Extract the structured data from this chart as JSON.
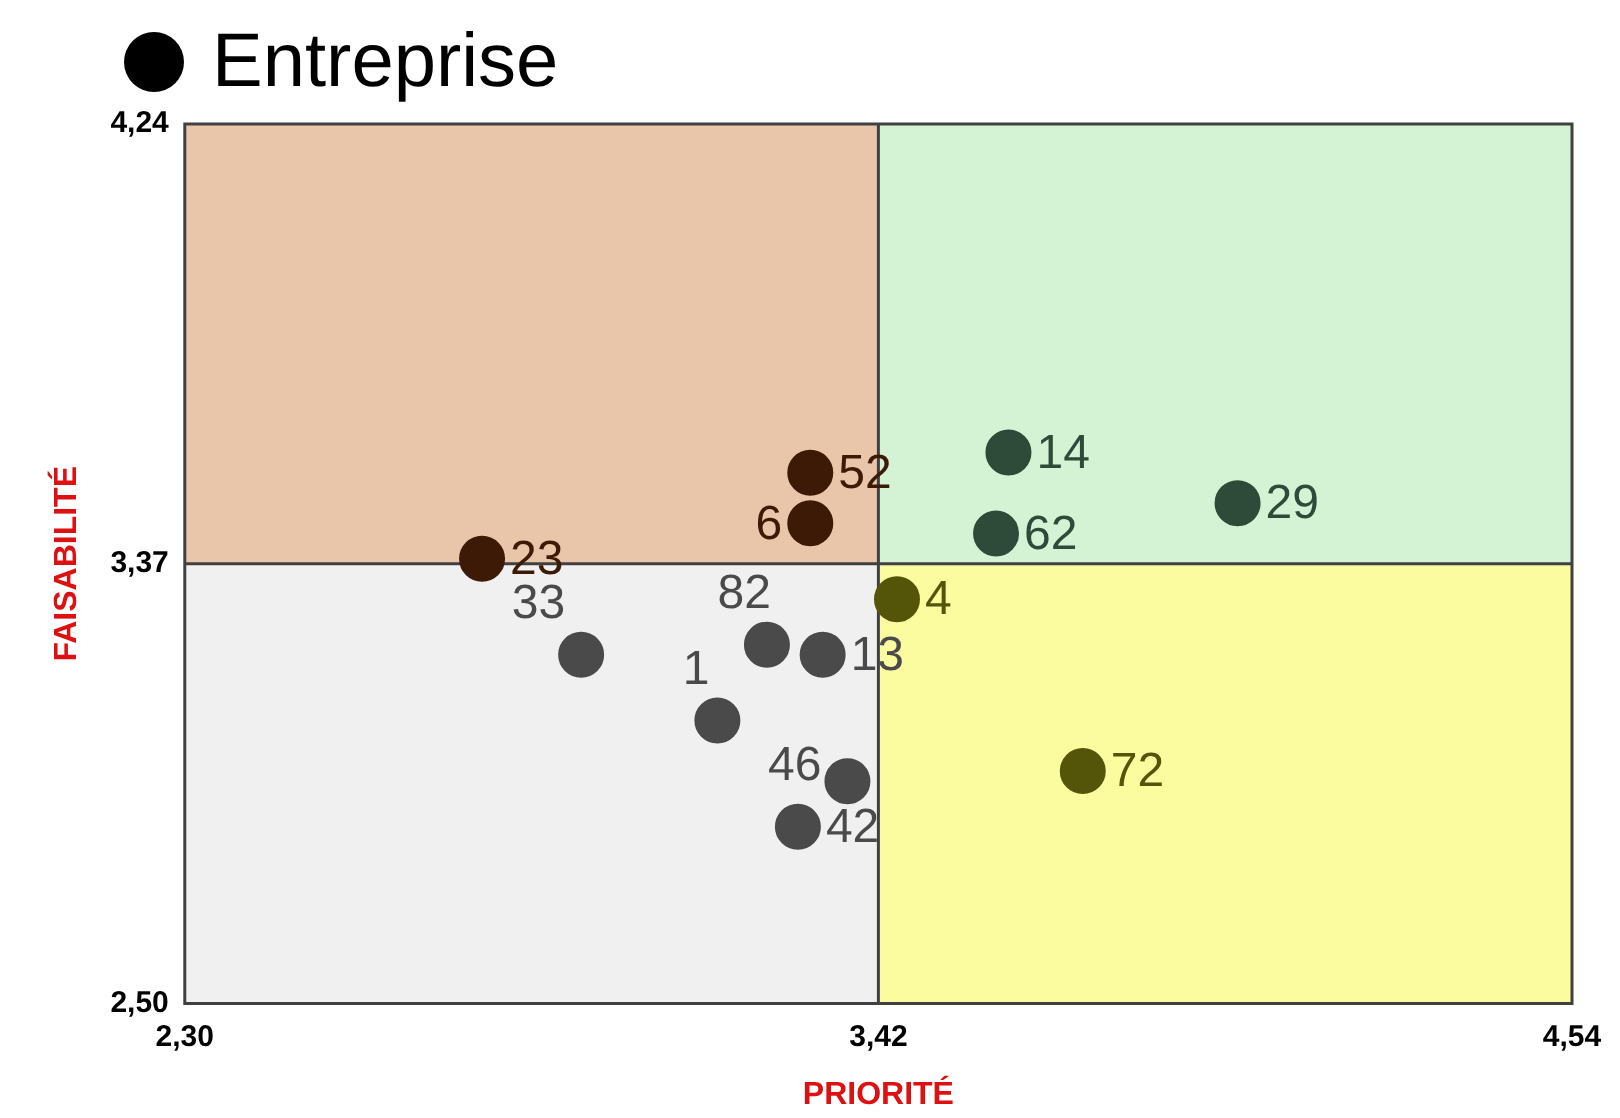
{
  "chart_data": {
    "type": "scatter",
    "xlabel": "PRIORITÉ",
    "ylabel": "FAISABILITÉ",
    "xlim": [
      2.3,
      4.54
    ],
    "xticks": [
      {
        "value": 2.3,
        "label": "2,30"
      },
      {
        "value": 3.42,
        "label": "3,42"
      },
      {
        "value": 4.54,
        "label": "4,54"
      }
    ],
    "ylim": [
      2.5,
      4.24
    ],
    "yticks": [
      {
        "value": 2.5,
        "label": "2,50"
      },
      {
        "value": 3.37,
        "label": "3,37"
      },
      {
        "value": 4.24,
        "label": "4,24"
      }
    ],
    "legend": "top left",
    "marker": "circle",
    "ref_lines": [
      {
        "axis": "x",
        "value": 3.42,
        "color": "#404040"
      },
      {
        "axis": "y",
        "value": 3.37,
        "color": "#404040"
      }
    ],
    "series": [
      {
        "name": "Entreprise",
        "color": "#000000",
        "x": [
          2.78,
          2.94,
          3.24,
          3.33,
          3.16,
          3.37,
          3.29,
          3.31,
          3.31,
          3.63,
          3.61,
          4.0,
          3.45,
          3.75
        ],
        "values": [
          3.38,
          3.19,
          3.21,
          3.19,
          3.06,
          2.94,
          2.85,
          3.55,
          3.45,
          3.59,
          3.43,
          3.49,
          3.3,
          2.96
        ],
        "colors": [
          "#3d1a05",
          "#4a4a4a",
          "#4a4a4a",
          "#4a4a4a",
          "#4a4a4a",
          "#4a4a4a",
          "#4a4a4a",
          "#3d1a05",
          "#3d1a05",
          "#2e4a38",
          "#2e4a38",
          "#2e4a38",
          "#55550a",
          "#55550a"
        ]
      }
    ],
    "annotations": [
      {
        "text": "23",
        "x": 2.78,
        "y": 3.38
      },
      {
        "text": "33",
        "x": 2.94,
        "y": 3.19
      },
      {
        "text": "82",
        "x": 3.24,
        "y": 3.21
      },
      {
        "text": "13",
        "x": 3.33,
        "y": 3.19
      },
      {
        "text": "1",
        "x": 3.16,
        "y": 3.06
      },
      {
        "text": "46",
        "x": 3.37,
        "y": 2.94
      },
      {
        "text": "42",
        "x": 3.29,
        "y": 2.85
      },
      {
        "text": "52",
        "x": 3.31,
        "y": 3.55
      },
      {
        "text": "6",
        "x": 3.31,
        "y": 3.45
      },
      {
        "text": "14",
        "x": 3.63,
        "y": 3.59
      },
      {
        "text": "62",
        "x": 3.61,
        "y": 3.43
      },
      {
        "text": "29",
        "x": 4.0,
        "y": 3.49
      },
      {
        "text": "4",
        "x": 3.45,
        "y": 3.3
      },
      {
        "text": "72",
        "x": 3.75,
        "y": 2.96
      }
    ]
  }
}
